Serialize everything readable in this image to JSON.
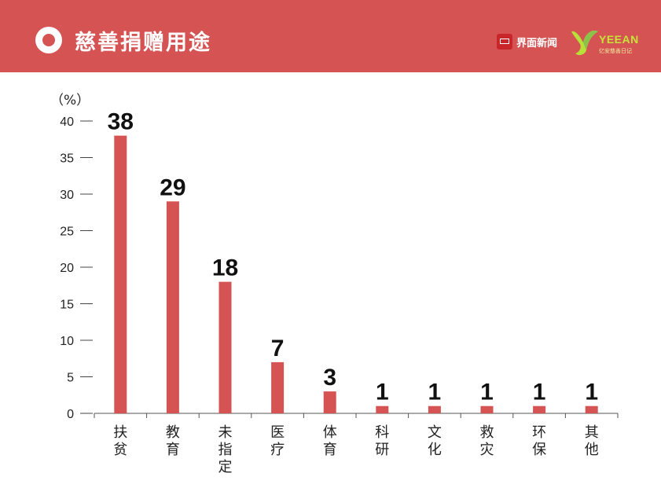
{
  "header": {
    "title": "慈善捐赠用途",
    "brand_jiemian": "界面新闻",
    "brand_yeean": "YEEAN",
    "brand_yeean_sub": "亿安慈善日记",
    "background_color": "#d65353"
  },
  "chart_data": {
    "type": "bar",
    "categories": [
      "扶贫",
      "教育",
      "未指定",
      "医疗",
      "体育",
      "科研",
      "文化",
      "救灾",
      "环保",
      "其他"
    ],
    "values": [
      38,
      29,
      18,
      7,
      3,
      1,
      1,
      1,
      1,
      1
    ],
    "data_labels": [
      "38",
      "29",
      "18",
      "7",
      "3",
      "1",
      "1",
      "1",
      "1",
      "1"
    ],
    "ylabel": "（%）",
    "ylim": [
      0,
      40
    ],
    "yticks": [
      "0",
      "5",
      "10",
      "15",
      "20",
      "25",
      "30",
      "35",
      "40"
    ],
    "bar_color": "#d65353",
    "grid": false,
    "legend": "none"
  }
}
